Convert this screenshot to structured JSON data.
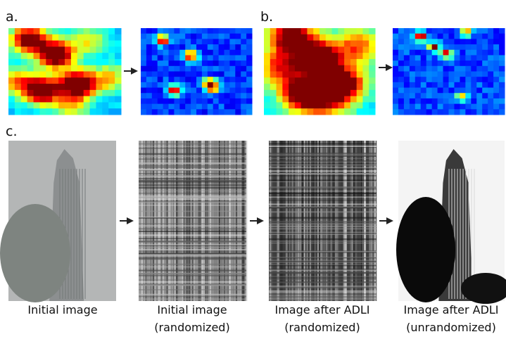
{
  "panels": {
    "a": {
      "label": "a."
    },
    "b": {
      "label": "b."
    },
    "c": {
      "label": "c."
    }
  },
  "captions": [
    {
      "line1": "Initial image"
    },
    {
      "line1": "Initial image",
      "line2": "(randomized)"
    },
    {
      "line1": "Image after ADLI",
      "line2": "(randomized)"
    },
    {
      "line1": "Image after ADLI",
      "line2": "(unrandomized)"
    }
  ]
}
